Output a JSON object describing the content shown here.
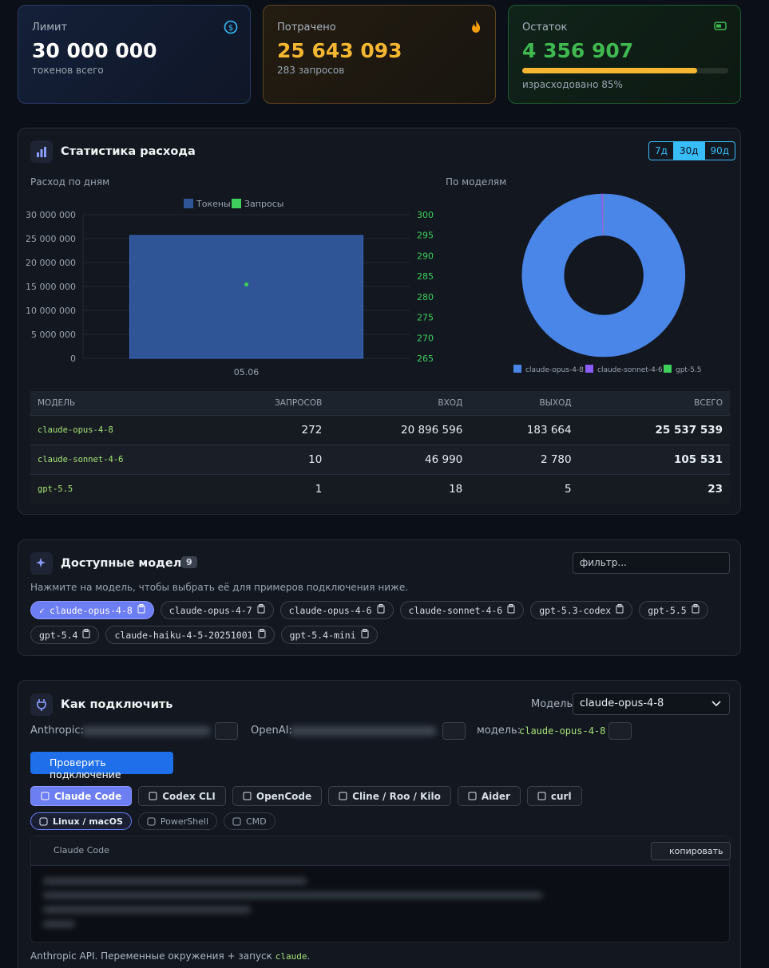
{
  "cards": [
    {
      "label": "Лимит",
      "value": "30 000 000",
      "sub": "токенов всего"
    },
    {
      "label": "Потрачено",
      "value": "25 643 093",
      "sub": "283 запросов"
    },
    {
      "label": "Остаток",
      "value": "4 356 907",
      "sub": "израсходовано 85%",
      "progress": 85
    }
  ],
  "stats": {
    "title": "Статистика расхода",
    "ranges": [
      "7д",
      "30д",
      "90д"
    ],
    "active_range": 1,
    "daily_chart": {
      "type": "bar",
      "title": "Расход по дням",
      "categories": [
        "05.06"
      ],
      "series": [
        {
          "name": "Токены",
          "color": "#2f5597",
          "values": [
            25643093
          ]
        },
        {
          "name": "Запросы",
          "color": "#3ecf5c",
          "axis": "y2",
          "values": [
            283
          ]
        }
      ],
      "ylim": [
        0,
        30000000
      ],
      "yticks": [
        0,
        {
          "value": 5000000,
          "label": "5 000 000"
        },
        {
          "value": 10000000,
          "label": "10 000 000"
        },
        {
          "value": 15000000,
          "label": "15 000 000"
        },
        {
          "value": 20000000,
          "label": "20 000 000"
        },
        {
          "value": 25000000,
          "label": "25 000 000"
        },
        {
          "value": 30000000,
          "label": "30 000 000"
        }
      ],
      "y2lim": [
        265,
        300
      ],
      "y2ticks": [
        265,
        270,
        275,
        280,
        285,
        290,
        295,
        300
      ],
      "grid": true
    },
    "model_chart": {
      "type": "pie",
      "title": "По моделям",
      "categories": [
        "claude-opus-4-8",
        "claude-sonnet-4-6",
        "gpt-5.5"
      ],
      "values": [
        25537539,
        105531,
        23
      ],
      "colors": [
        "#4a86e8",
        "#8b5cf6",
        "#3ecf5c"
      ]
    },
    "table": {
      "columns": [
        "МОДЕЛЬ",
        "ЗАПРОСОВ",
        "ВХОД",
        "ВЫХОД",
        "ВСЕГО"
      ],
      "rows": [
        [
          "claude-opus-4-8",
          "272",
          "20 896 596",
          "183 664",
          "25 537 539"
        ],
        [
          "claude-sonnet-4-6",
          "10",
          "46 990",
          "2 780",
          "105 531"
        ],
        [
          "gpt-5.5",
          "1",
          "18",
          "5",
          "23"
        ]
      ]
    }
  },
  "models": {
    "title": "Доступные модели",
    "count": "9",
    "filter_placeholder": "фильтр...",
    "hint": "Нажмите на модель, чтобы выбрать её для примеров подключения ниже.",
    "selected": 0,
    "items": [
      "claude-opus-4-8",
      "claude-opus-4-7",
      "claude-opus-4-6",
      "claude-sonnet-4-6",
      "gpt-5.3-codex",
      "gpt-5.5",
      "gpt-5.4",
      "claude-haiku-4-5-20251001",
      "gpt-5.4-mini"
    ]
  },
  "connect": {
    "title": "Как подключить",
    "model_label": "Модель",
    "model_value": "claude-opus-4-8",
    "anthropic_label": "Anthropic:",
    "openai_label": "OpenAI:",
    "inline_model_label": "модель:",
    "inline_model_value": "claude-opus-4-8",
    "check_button": "Проверить подключение",
    "tools": [
      "Claude Code",
      "Codex CLI",
      "OpenCode",
      "Cline / Roo / Kilo",
      "Aider",
      "curl"
    ],
    "active_tool": 0,
    "os": [
      "Linux / macOS",
      "PowerShell",
      "CMD"
    ],
    "active_os": 0,
    "code_title": "Claude Code",
    "copy_button": "копировать",
    "footer_text": "Anthropic API. Переменные окружения + запуск",
    "footer_code": "claude",
    "footer_end": "."
  }
}
